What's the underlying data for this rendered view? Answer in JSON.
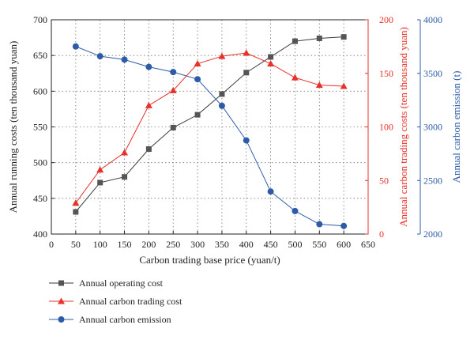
{
  "chart_data": {
    "type": "line",
    "title": "",
    "x": [
      50,
      100,
      150,
      200,
      250,
      300,
      350,
      400,
      450,
      500,
      550,
      600
    ],
    "xlabel": "Carbon trading base price (yuan/t)",
    "xlim": [
      0,
      650
    ],
    "xticks": [
      0,
      50,
      100,
      150,
      200,
      250,
      300,
      350,
      400,
      450,
      500,
      550,
      600,
      650
    ],
    "grid": true,
    "legend_position": "bottom-left",
    "axes": {
      "left": {
        "label": "Annual running costs (ten thousand yuan)",
        "ylim": [
          400,
          700
        ],
        "ticks": [
          400,
          450,
          500,
          550,
          600,
          650,
          700
        ],
        "color": "#222222"
      },
      "right1": {
        "label": "Annual carbon trading costs (ten thousand yuan)",
        "ylim": [
          0,
          200
        ],
        "ticks": [
          0,
          50,
          100,
          150,
          200
        ],
        "color": "#e8312a"
      },
      "right2": {
        "label": "Annual carbon emission (t)",
        "ylim": [
          2000,
          4000
        ],
        "ticks": [
          2000,
          2500,
          3000,
          3500,
          4000
        ],
        "color": "#2e5ba8"
      }
    },
    "series": [
      {
        "name": "Annual operating cost",
        "axis": "left",
        "marker": "square",
        "color": "#3a3a3a",
        "markerColor": "#555555",
        "values": [
          431,
          472,
          480,
          519,
          549,
          567,
          596,
          626,
          648,
          670,
          674,
          676
        ]
      },
      {
        "name": "Annual carbon trading cost",
        "axis": "right1",
        "marker": "triangle",
        "color": "#e8312a",
        "markerColor": "#e8312a",
        "values": [
          29,
          60,
          76,
          120,
          134,
          159,
          166,
          169,
          159,
          146,
          139,
          138
        ]
      },
      {
        "name": "Annual carbon emission",
        "axis": "right2",
        "marker": "circle",
        "color": "#2e5ba8",
        "markerColor": "#2e5ba8",
        "values": [
          3751,
          3660,
          3628,
          3560,
          3512,
          3445,
          3197,
          2874,
          2397,
          2215,
          2092,
          2076
        ]
      }
    ]
  }
}
